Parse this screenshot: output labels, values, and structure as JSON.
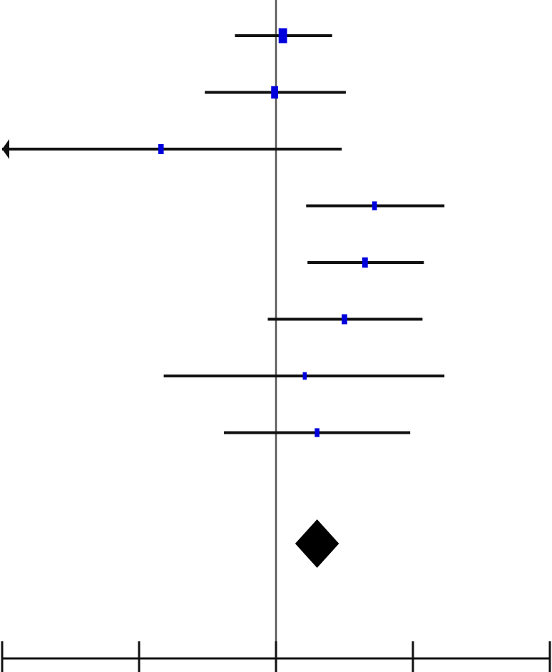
{
  "chart_data": {
    "type": "forest",
    "reference_line": 0,
    "xlim": [
      -2,
      2
    ],
    "x_ticks": [
      -2,
      -1,
      0,
      1,
      2
    ],
    "grid": false,
    "colors": {
      "estimate": "#0000dd",
      "interval": "#111111",
      "pooled": "#000000",
      "reference": "#555555"
    },
    "studies": [
      {
        "estimate": 0.05,
        "lower": -0.3,
        "upper": 0.41,
        "weight": 3.0
      },
      {
        "estimate": -0.01,
        "lower": -0.52,
        "upper": 0.51,
        "weight": 2.2
      },
      {
        "estimate": -0.84,
        "lower": -2.0,
        "upper": 0.48,
        "weight": 1.4,
        "lower_truncated": true
      },
      {
        "estimate": 0.72,
        "lower": 0.22,
        "upper": 1.23,
        "weight": 1.0
      },
      {
        "estimate": 0.65,
        "lower": 0.23,
        "upper": 1.08,
        "weight": 1.5
      },
      {
        "estimate": 0.5,
        "lower": -0.06,
        "upper": 1.07,
        "weight": 1.4
      },
      {
        "estimate": 0.21,
        "lower": -0.82,
        "upper": 1.23,
        "weight": 0.6
      },
      {
        "estimate": 0.3,
        "lower": -0.38,
        "upper": 0.98,
        "weight": 1.0
      }
    ],
    "pooled": {
      "estimate": 0.3,
      "lower": 0.14,
      "upper": 0.46
    }
  }
}
